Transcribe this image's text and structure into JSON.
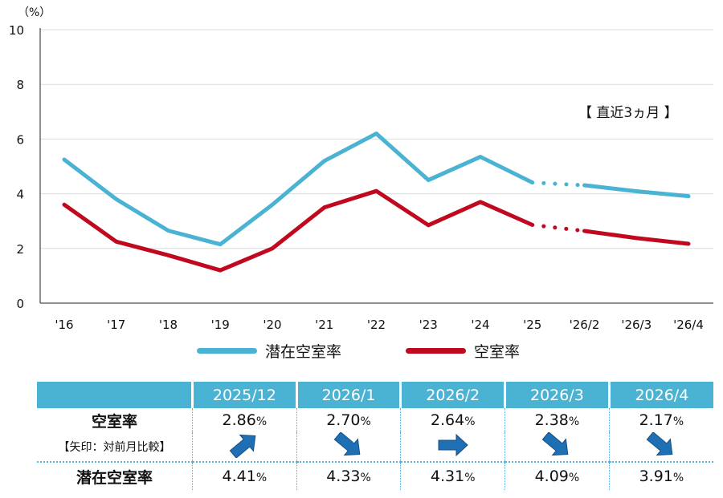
{
  "chart_data": {
    "type": "line",
    "y_unit_label": "（%）",
    "ylim": [
      0,
      10
    ],
    "yticks": [
      "0",
      "2",
      "4",
      "6",
      "8",
      "10"
    ],
    "categories": [
      "'16",
      "'17",
      "'18",
      "'19",
      "'20",
      "'21",
      "'22",
      "'23",
      "'24",
      "'25",
      "'26/2",
      "'26/3",
      "'26/4"
    ],
    "annotation": "【 直近3ヵ月 】",
    "grid": true,
    "legend_position": "bottom",
    "series": [
      {
        "name": "潜在空室率",
        "color": "#4ab3d3",
        "values": [
          5.25,
          3.8,
          2.65,
          2.15,
          3.6,
          5.2,
          6.2,
          4.5,
          5.35,
          4.41,
          4.31,
          4.09,
          3.91
        ],
        "dotted_between": [
          9,
          10
        ]
      },
      {
        "name": "空室率",
        "color": "#c0081e",
        "values": [
          3.6,
          2.25,
          1.75,
          1.2,
          2.0,
          3.5,
          4.1,
          2.85,
          3.7,
          2.86,
          2.64,
          2.38,
          2.17
        ],
        "dotted_between": [
          9,
          10
        ]
      }
    ]
  },
  "table": {
    "headers": [
      "2025/12",
      "2026/1",
      "2026/2",
      "2026/3",
      "2026/4"
    ],
    "header_color": "#4ab3d3",
    "rows": [
      {
        "label": "空室率",
        "values": [
          "2.86",
          "2.70",
          "2.64",
          "2.38",
          "2.17"
        ],
        "unit": "%"
      },
      {
        "label": "【矢印：対前月比較】",
        "arrows": [
          "up-right",
          "down-right",
          "right",
          "down-right",
          "down-right"
        ]
      },
      {
        "label": "潜在空室率",
        "values": [
          "4.41",
          "4.33",
          "4.31",
          "4.09",
          "3.91"
        ],
        "unit": "%"
      }
    ],
    "arrow_color": "#1e6fb4"
  }
}
